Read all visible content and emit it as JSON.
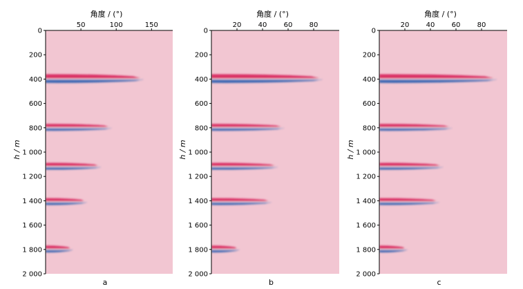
{
  "chart_data": [
    {
      "type": "heatmap",
      "panel_label": "a",
      "xlabel": "角度 / (°)",
      "ylabel": "h / m",
      "xlim": [
        0,
        180
      ],
      "ylim": [
        0,
        2000
      ],
      "x_ticks": [
        {
          "v": 50,
          "label": "50"
        },
        {
          "v": 100,
          "label": "100"
        },
        {
          "v": 150,
          "label": "150"
        }
      ],
      "y_ticks": [
        {
          "v": 0,
          "label": "0"
        },
        {
          "v": 200,
          "label": "200"
        },
        {
          "v": 400,
          "label": "400"
        },
        {
          "v": 600,
          "label": "600"
        },
        {
          "v": 800,
          "label": "800"
        },
        {
          "v": 1000,
          "label": "1 000"
        },
        {
          "v": 1200,
          "label": "1 200"
        },
        {
          "v": 1400,
          "label": "1 400"
        },
        {
          "v": 1600,
          "label": "1 600"
        },
        {
          "v": 1800,
          "label": "1 800"
        },
        {
          "v": 2000,
          "label": "2 000"
        }
      ],
      "events": [
        {
          "depth": 400,
          "max_angle": 135
        },
        {
          "depth": 800,
          "max_angle": 90
        },
        {
          "depth": 1120,
          "max_angle": 75
        },
        {
          "depth": 1410,
          "max_angle": 55
        },
        {
          "depth": 1800,
          "max_angle": 35
        }
      ]
    },
    {
      "type": "heatmap",
      "panel_label": "b",
      "xlabel": "角度 / (°)",
      "ylabel": "h / m",
      "xlim": [
        0,
        100
      ],
      "ylim": [
        0,
        2000
      ],
      "x_ticks": [
        {
          "v": 20,
          "label": "20"
        },
        {
          "v": 40,
          "label": "40"
        },
        {
          "v": 60,
          "label": "60"
        },
        {
          "v": 80,
          "label": "80"
        }
      ],
      "y_ticks": [
        {
          "v": 0,
          "label": "0"
        },
        {
          "v": 200,
          "label": "200"
        },
        {
          "v": 400,
          "label": "400"
        },
        {
          "v": 600,
          "label": "600"
        },
        {
          "v": 800,
          "label": "800"
        },
        {
          "v": 1000,
          "label": "1 000"
        },
        {
          "v": 1200,
          "label": "1 200"
        },
        {
          "v": 1400,
          "label": "1 400"
        },
        {
          "v": 1600,
          "label": "1 600"
        },
        {
          "v": 1800,
          "label": "1 800"
        },
        {
          "v": 2000,
          "label": "2 000"
        }
      ],
      "events": [
        {
          "depth": 400,
          "max_angle": 85
        },
        {
          "depth": 800,
          "max_angle": 55
        },
        {
          "depth": 1120,
          "max_angle": 50
        },
        {
          "depth": 1410,
          "max_angle": 45
        },
        {
          "depth": 1800,
          "max_angle": 20
        }
      ]
    },
    {
      "type": "heatmap",
      "panel_label": "c",
      "xlabel": "角度 / (°)",
      "ylabel": "h / m",
      "xlim": [
        0,
        100
      ],
      "ylim": [
        0,
        2000
      ],
      "x_ticks": [
        {
          "v": 20,
          "label": "20"
        },
        {
          "v": 40,
          "label": "40"
        },
        {
          "v": 60,
          "label": "60"
        },
        {
          "v": 80,
          "label": "80"
        }
      ],
      "y_ticks": [
        {
          "v": 0,
          "label": "0"
        },
        {
          "v": 200,
          "label": "200"
        },
        {
          "v": 400,
          "label": "400"
        },
        {
          "v": 600,
          "label": "600"
        },
        {
          "v": 800,
          "label": "800"
        },
        {
          "v": 1000,
          "label": "1 000"
        },
        {
          "v": 1200,
          "label": "1 200"
        },
        {
          "v": 1400,
          "label": "1 400"
        },
        {
          "v": 1600,
          "label": "1 600"
        },
        {
          "v": 1800,
          "label": "1 800"
        },
        {
          "v": 2000,
          "label": "2 000"
        }
      ],
      "events": [
        {
          "depth": 400,
          "max_angle": 90
        },
        {
          "depth": 800,
          "max_angle": 55
        },
        {
          "depth": 1120,
          "max_angle": 48
        },
        {
          "depth": 1410,
          "max_angle": 45
        },
        {
          "depth": 1800,
          "max_angle": 20
        }
      ]
    }
  ],
  "colors": {
    "background": "#f2c6d2",
    "positive": "#d8245c",
    "negative": "#2b5fb0",
    "axis": "#000000"
  }
}
